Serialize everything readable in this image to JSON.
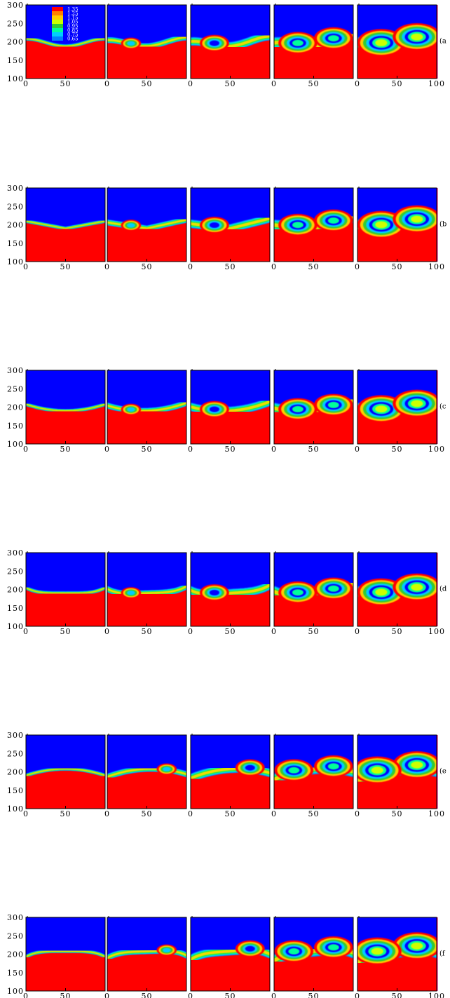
{
  "chart_data": {
    "type": "heatmap",
    "colormap": [
      "#0000ff",
      "#0080ff",
      "#00ccff",
      "#00ff99",
      "#33cc33",
      "#ccff00",
      "#ffcc00",
      "#ff7f00",
      "#ff0000"
    ],
    "legend": {
      "values": [
        "1.35",
        "1.25",
        "1.15",
        "1.05",
        "0.95",
        "0.85",
        "0.75",
        "0.65"
      ],
      "colors": [
        "#ff0000",
        "#ff7f00",
        "#ffcc00",
        "#ccff00",
        "#33cc33",
        "#00ff99",
        "#00ccff",
        "#0080ff"
      ]
    },
    "xlim": [
      0,
      100
    ],
    "ylim": [
      100,
      300
    ],
    "x_ticks": [
      "0",
      "50"
    ],
    "x_ticks_last": [
      "0",
      "50",
      "100"
    ],
    "y_ticks": [
      "100",
      "150",
      "200",
      "250",
      "300"
    ],
    "rows": [
      {
        "label": "(a",
        "initial_interface": "sine"
      },
      {
        "label": "(b",
        "initial_interface": "v-shape"
      },
      {
        "label": "(c",
        "initial_interface": "arc"
      },
      {
        "label": "(d",
        "initial_interface": "arc-flat"
      },
      {
        "label": "(e",
        "initial_interface": "hump"
      },
      {
        "label": "(f",
        "initial_interface": "hump-flat"
      }
    ],
    "columns_per_row": 5
  }
}
